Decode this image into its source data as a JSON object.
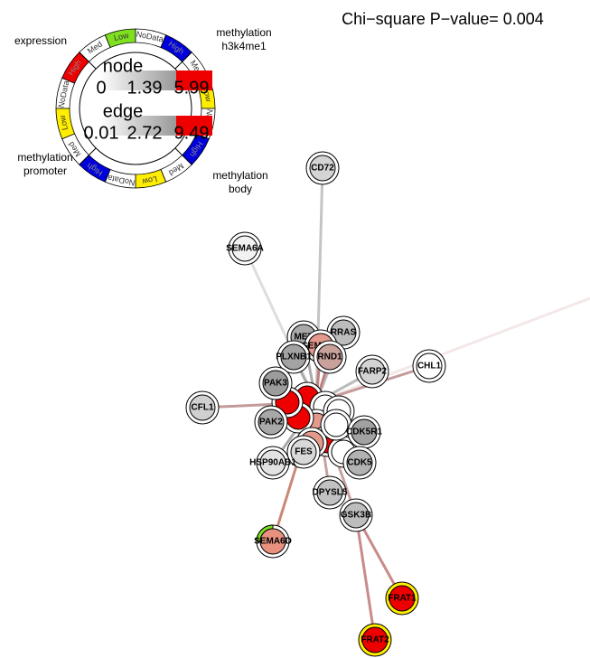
{
  "header": {
    "title": "Chi−square P−value= 0.004"
  },
  "legend": {
    "tracks": [
      "expression",
      "methylation h3k4me1",
      "methylation body",
      "methylation promoter"
    ],
    "levels": [
      "Low",
      "Med",
      "High",
      "NoData"
    ],
    "node": {
      "label": "node",
      "ticks": [
        "0",
        "1.39",
        "5.99"
      ]
    },
    "edge": {
      "label": "edge",
      "ticks": [
        "0.01",
        "2.72",
        "9.49"
      ]
    }
  },
  "nodes": [
    {
      "label": "CD72",
      "color": "#d4d4d4"
    },
    {
      "label": "SEMA6A",
      "color": "#f2f2f2"
    },
    {
      "label": "MET",
      "color": "#a9a9a9"
    },
    {
      "label": "RRAS",
      "color": "#bdbdbd"
    },
    {
      "label": "SEMA4D",
      "color": "#e39a8c"
    },
    {
      "label": "PLXNB1",
      "color": "#a3a3a3"
    },
    {
      "label": "RND1",
      "color": "#c9a19b"
    },
    {
      "label": "FARP2",
      "color": "#d3d3d3"
    },
    {
      "label": "CHL1",
      "color": "#ffffff"
    },
    {
      "label": "PAK3",
      "color": "#9c9c9c"
    },
    {
      "label": "CFL1",
      "color": "#d0d0d0"
    },
    {
      "label": "PAK2",
      "color": "#a8a8a8"
    },
    {
      "label": "CDK5R1",
      "color": "#a2a2a2"
    },
    {
      "label": "FES",
      "color": "#d8d8d8"
    },
    {
      "label": "HSP90AB1",
      "color": "#e2e2e2"
    },
    {
      "label": "CDK5",
      "color": "#b2b2b2"
    },
    {
      "label": "DPYSL5",
      "color": "#c2c2c2"
    },
    {
      "label": "GSK3B",
      "color": "#bdbdbd"
    },
    {
      "label": "SEMA6D",
      "color": "#e8917f"
    },
    {
      "label": "FRAT1",
      "color": "#ee0000"
    },
    {
      "label": "FRAT2",
      "color": "#ee0000"
    }
  ]
}
